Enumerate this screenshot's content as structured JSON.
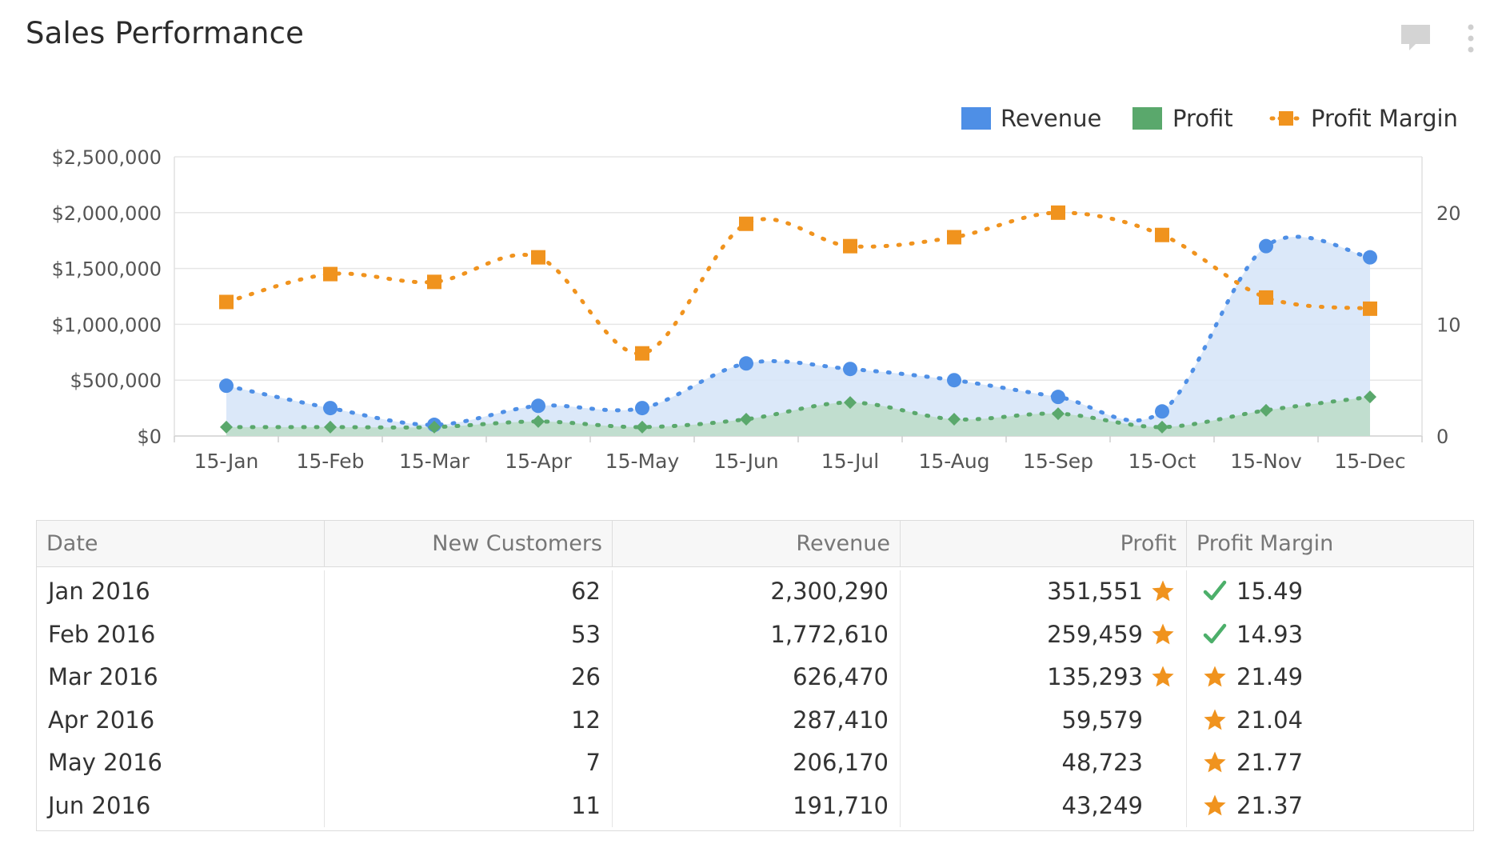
{
  "widget": {
    "title": "Sales Performance",
    "icons": [
      "comment-icon",
      "more-vertical-icon"
    ]
  },
  "colors": {
    "revenue": "#4e8fe6",
    "revenue_fill": "#d7e5f8",
    "profit": "#5aa86c",
    "profit_fill": "#bcdcc8",
    "margin": "#f0931e",
    "grid": "#e6e6e6"
  },
  "chart_data": {
    "type": "line",
    "title": "Sales Performance",
    "categories": [
      "15-Jan",
      "15-Feb",
      "15-Mar",
      "15-Apr",
      "15-May",
      "15-Jun",
      "15-Jul",
      "15-Aug",
      "15-Sep",
      "15-Oct",
      "15-Nov",
      "15-Dec"
    ],
    "series": [
      {
        "name": "Revenue",
        "axis": "left",
        "style": "area",
        "values": [
          450000,
          250000,
          100000,
          270000,
          250000,
          650000,
          600000,
          500000,
          350000,
          220000,
          1700000,
          1600000
        ]
      },
      {
        "name": "Profit",
        "axis": "left",
        "style": "area",
        "values": [
          80000,
          80000,
          80000,
          130000,
          80000,
          150000,
          300000,
          150000,
          200000,
          80000,
          230000,
          350000
        ]
      },
      {
        "name": "Profit Margin",
        "axis": "right",
        "style": "line",
        "values": [
          12,
          14.5,
          13.8,
          16,
          7.4,
          19,
          17,
          17.8,
          20,
          18,
          12.4,
          11.4
        ]
      }
    ],
    "y_left": {
      "range": [
        0,
        2500000
      ],
      "ticks": [
        "$0",
        "$500,000",
        "$1,000,000",
        "$1,500,000",
        "$2,000,000",
        "$2,500,000"
      ],
      "tick_values": [
        0,
        500000,
        1000000,
        1500000,
        2000000,
        2500000
      ]
    },
    "y_right": {
      "range": [
        0,
        25
      ],
      "ticks": [
        "0",
        "10",
        "20"
      ],
      "tick_values": [
        0,
        10,
        20
      ]
    },
    "legend": [
      {
        "name": "Revenue",
        "marker": "square"
      },
      {
        "name": "Profit",
        "marker": "square"
      },
      {
        "name": "Profit Margin",
        "marker": "line-square"
      }
    ],
    "legend_position": "top-right",
    "grid": true
  },
  "table": {
    "headers": [
      "Date",
      "New Customers",
      "Revenue",
      "Profit",
      "Profit Margin"
    ],
    "rows": [
      {
        "date": "Jan 2016",
        "customers": "62",
        "revenue": "2,300,290",
        "profit": "351,551",
        "profit_icon": "star-icon",
        "margin": "15.49",
        "margin_icon": "check-icon"
      },
      {
        "date": "Feb 2016",
        "customers": "53",
        "revenue": "1,772,610",
        "profit": "259,459",
        "profit_icon": "star-icon",
        "margin": "14.93",
        "margin_icon": "check-icon"
      },
      {
        "date": "Mar 2016",
        "customers": "26",
        "revenue": "626,470",
        "profit": "135,293",
        "profit_icon": "star-icon",
        "margin": "21.49",
        "margin_icon": "star-icon"
      },
      {
        "date": "Apr 2016",
        "customers": "12",
        "revenue": "287,410",
        "profit": "59,579",
        "profit_icon": "",
        "margin": "21.04",
        "margin_icon": "star-icon"
      },
      {
        "date": "May 2016",
        "customers": "7",
        "revenue": "206,170",
        "profit": "48,723",
        "profit_icon": "",
        "margin": "21.77",
        "margin_icon": "star-icon"
      },
      {
        "date": "Jun 2016",
        "customers": "11",
        "revenue": "191,710",
        "profit": "43,249",
        "profit_icon": "",
        "margin": "21.37",
        "margin_icon": "star-icon"
      }
    ]
  }
}
